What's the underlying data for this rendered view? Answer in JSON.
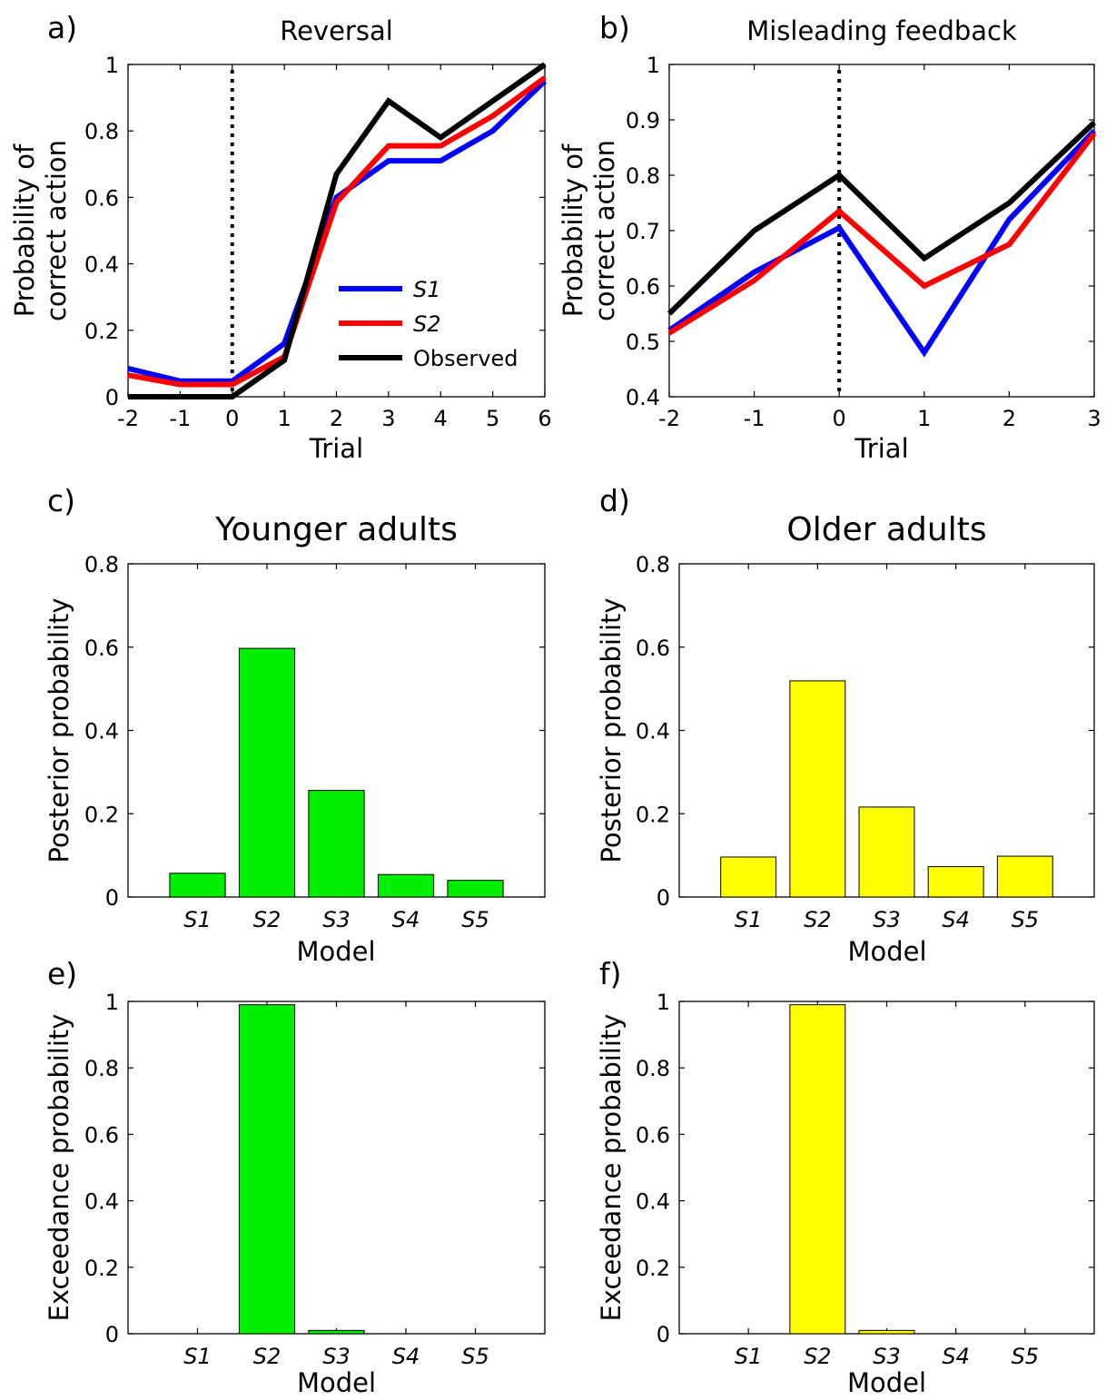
{
  "figure": {
    "panels": [
      "a)",
      "b)",
      "c)",
      "d)",
      "e)",
      "f)"
    ]
  },
  "chart_data": [
    {
      "panel": "a)",
      "type": "line",
      "title": "Reversal",
      "xlabel": "Trial",
      "ylabel": [
        "Probability of",
        "correct action"
      ],
      "x": [
        -2,
        -1,
        0,
        1,
        2,
        3,
        4,
        5,
        6
      ],
      "xticks": [
        "-2",
        "-1",
        "0",
        "1",
        "2",
        "3",
        "4",
        "5",
        "6"
      ],
      "xlim": [
        -2,
        6
      ],
      "yticks": [
        "0",
        "0.2",
        "0.4",
        "0.6",
        "0.8",
        "1"
      ],
      "ylim": [
        0,
        1
      ],
      "vline_x": 0,
      "legend_placement": "lower-right",
      "series": [
        {
          "name": "S1",
          "color": "#0000ff",
          "italic": true,
          "values": [
            0.085,
            0.047,
            0.047,
            0.16,
            0.6,
            0.71,
            0.71,
            0.8,
            0.95
          ]
        },
        {
          "name": "S2",
          "color": "#ff0000",
          "italic": true,
          "values": [
            0.065,
            0.037,
            0.037,
            0.12,
            0.585,
            0.755,
            0.755,
            0.845,
            0.96
          ]
        },
        {
          "name": "Observed",
          "color": "#000000",
          "italic": false,
          "values": [
            0.0,
            0.0,
            0.0,
            0.11,
            0.67,
            0.89,
            0.78,
            0.89,
            1.0
          ]
        }
      ]
    },
    {
      "panel": "b)",
      "type": "line",
      "title": "Misleading feedback",
      "xlabel": "Trial",
      "ylabel": [
        "Probability of",
        "correct action"
      ],
      "x": [
        -2,
        -1,
        0,
        1,
        2,
        3
      ],
      "xticks": [
        "-2",
        "-1",
        "0",
        "1",
        "2",
        "3"
      ],
      "xlim": [
        -2,
        3
      ],
      "yticks": [
        "0.4",
        "0.5",
        "0.6",
        "0.7",
        "0.8",
        "0.9",
        "1"
      ],
      "ylim": [
        0.4,
        1
      ],
      "vline_x": 0,
      "series": [
        {
          "name": "S1",
          "color": "#0000ff",
          "values": [
            0.52,
            0.625,
            0.705,
            0.48,
            0.72,
            0.88
          ]
        },
        {
          "name": "S2",
          "color": "#ff0000",
          "values": [
            0.515,
            0.61,
            0.735,
            0.6,
            0.675,
            0.875
          ]
        },
        {
          "name": "Observed",
          "color": "#000000",
          "values": [
            0.55,
            0.7,
            0.8,
            0.65,
            0.75,
            0.895
          ]
        }
      ]
    },
    {
      "panel": "c)",
      "type": "bar",
      "title": "Younger adults",
      "xlabel": "",
      "ylabel": [
        "Posterior probability"
      ],
      "categories": [
        "S1",
        "S2",
        "S3",
        "S4",
        "S5"
      ],
      "values": [
        0.057,
        0.597,
        0.256,
        0.054,
        0.04
      ],
      "color": "#00ee00",
      "yticks": [
        "0",
        "0.2",
        "0.4",
        "0.6",
        "0.8"
      ],
      "ylim": [
        0,
        0.8
      ]
    },
    {
      "panel": "d)",
      "type": "bar",
      "title": "Older adults",
      "xlabel": "",
      "ylabel": [
        "Posterior probability"
      ],
      "categories": [
        "S1",
        "S2",
        "S3",
        "S4",
        "S5"
      ],
      "values": [
        0.096,
        0.519,
        0.216,
        0.073,
        0.098
      ],
      "color": "#ffff00",
      "yticks": [
        "0",
        "0.2",
        "0.4",
        "0.6",
        "0.8"
      ],
      "ylim": [
        0,
        0.8
      ]
    },
    {
      "panel": "e)",
      "type": "bar",
      "title": "",
      "xlabel": "Model",
      "ylabel": [
        "Exceedance probability"
      ],
      "categories": [
        "S1",
        "S2",
        "S3",
        "S4",
        "S5"
      ],
      "values": [
        0.0,
        0.99,
        0.01,
        0.0,
        0.0
      ],
      "color": "#00ee00",
      "yticks": [
        "0",
        "0.2",
        "0.4",
        "0.6",
        "0.8",
        "1"
      ],
      "ylim": [
        0,
        1
      ]
    },
    {
      "panel": "f)",
      "type": "bar",
      "title": "",
      "xlabel": "Model",
      "ylabel": [
        "Exceedance probability"
      ],
      "categories": [
        "S1",
        "S2",
        "S3",
        "S4",
        "S5"
      ],
      "values": [
        0.0,
        0.99,
        0.01,
        0.0,
        0.0
      ],
      "color": "#ffff00",
      "yticks": [
        "0",
        "0.2",
        "0.4",
        "0.6",
        "0.8",
        "1"
      ],
      "ylim": [
        0,
        1
      ]
    }
  ],
  "middle_xlabels": [
    "Model",
    "Model"
  ]
}
